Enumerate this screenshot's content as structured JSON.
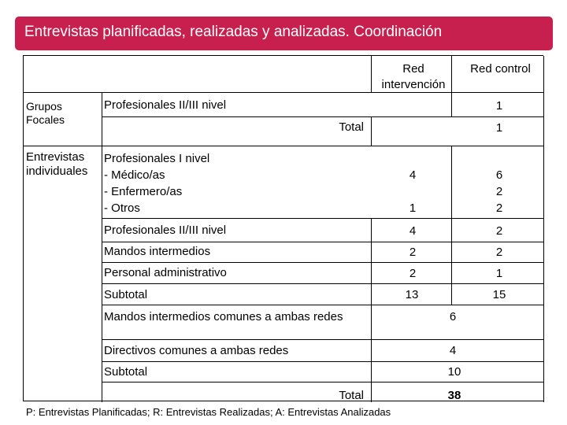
{
  "title": "Entrevistas planificadas, realizadas y analizadas. Coordinación",
  "headers": {
    "red_intervencion": "Red\nintervención",
    "red_control": "Red control"
  },
  "groups": {
    "grupos_focales": "Grupos\nFocales",
    "entrevistas_individuales": "Entrevistas\nindividuales"
  },
  "rows": {
    "gf_prof_2_3": {
      "label": "Profesionales II/III nivel",
      "red_intervencion": "",
      "red_control": "1"
    },
    "gf_total": {
      "label": "Total",
      "red_intervencion": "",
      "red_control": "1"
    },
    "ei_prof_1": {
      "label": "Profesionales I nivel\n- Médico/as\n- Enfermero/as\n- Otros",
      "red_intervencion": [
        "4",
        "1"
      ],
      "red_control": [
        "6",
        "2",
        "2"
      ]
    },
    "ei_prof_2_3": {
      "label": "Profesionales II/III nivel",
      "red_intervencion": "4",
      "red_control": "2"
    },
    "ei_mandos": {
      "label": "Mandos intermedios",
      "red_intervencion": "2",
      "red_control": "2"
    },
    "ei_admin": {
      "label": "Personal administrativo",
      "red_intervencion": "2",
      "red_control": "1"
    },
    "ei_subtotal": {
      "label": "Subtotal",
      "red_intervencion": "13",
      "red_control": "15"
    },
    "comunes_mandos": {
      "label": "Mandos intermedios comunes a ambas redes",
      "value": "6"
    },
    "comunes_directivos": {
      "label": "Directivos comunes a ambas redes",
      "value": "4"
    },
    "comunes_subtotal": {
      "label": "Subtotal",
      "value": "10"
    },
    "total": {
      "label": "Total",
      "value": "38"
    }
  },
  "footnote": "P: Entrevistas Planificadas; R: Entrevistas Realizadas; A: Entrevistas Analizadas",
  "colors": {
    "title_bar": "#c8204e",
    "title_text": "#ffffff"
  }
}
